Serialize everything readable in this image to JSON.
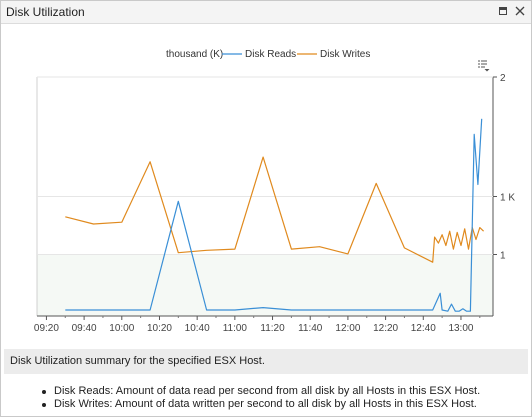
{
  "window": {
    "title": "Disk Utilization",
    "buttons": [
      "restore",
      "close"
    ]
  },
  "chart_data": {
    "type": "line",
    "unit_label": "thousand (K)",
    "legend_position": "top-center",
    "grid": true,
    "x_tick_labels": [
      "09:20",
      "09:40",
      "10:00",
      "10:20",
      "10:40",
      "11:00",
      "11:20",
      "11:40",
      "12:00",
      "12:20",
      "12:40",
      "13:00"
    ],
    "y_tick_labels": [
      "2",
      "1 K",
      "1"
    ],
    "y_range": [
      0,
      2000
    ],
    "series": [
      {
        "name": "Disk Reads",
        "color": "#3a8fd6",
        "points": [
          [
            "09:30",
            50
          ],
          [
            "09:40",
            50
          ],
          [
            "09:50",
            50
          ],
          [
            "10:00",
            50
          ],
          [
            "10:15",
            50
          ],
          [
            "10:30",
            960
          ],
          [
            "10:45",
            50
          ],
          [
            "11:00",
            50
          ],
          [
            "11:15",
            70
          ],
          [
            "11:30",
            50
          ],
          [
            "11:45",
            50
          ],
          [
            "12:00",
            50
          ],
          [
            "12:15",
            50
          ],
          [
            "12:30",
            50
          ],
          [
            "12:45",
            50
          ],
          [
            "12:49",
            190
          ],
          [
            "12:50",
            50
          ],
          [
            "12:53",
            40
          ],
          [
            "12:55",
            100
          ],
          [
            "12:57",
            40
          ],
          [
            "12:59",
            40
          ],
          [
            "13:01",
            60
          ],
          [
            "13:03",
            40
          ],
          [
            "13:05",
            40
          ],
          [
            "13:07",
            1520
          ],
          [
            "13:09",
            1100
          ],
          [
            "13:11",
            1650
          ]
        ]
      },
      {
        "name": "Disk Writes",
        "color": "#e08a1e",
        "points": [
          [
            "09:30",
            830
          ],
          [
            "09:45",
            770
          ],
          [
            "10:00",
            785
          ],
          [
            "10:15",
            1290
          ],
          [
            "10:30",
            530
          ],
          [
            "10:45",
            550
          ],
          [
            "11:00",
            560
          ],
          [
            "11:15",
            1330
          ],
          [
            "11:30",
            560
          ],
          [
            "11:45",
            580
          ],
          [
            "12:00",
            520
          ],
          [
            "12:15",
            1110
          ],
          [
            "12:30",
            570
          ],
          [
            "12:45",
            450
          ],
          [
            "12:46",
            660
          ],
          [
            "12:48",
            610
          ],
          [
            "12:50",
            680
          ],
          [
            "12:52",
            590
          ],
          [
            "12:54",
            710
          ],
          [
            "12:56",
            560
          ],
          [
            "12:58",
            700
          ],
          [
            "13:00",
            590
          ],
          [
            "13:02",
            730
          ],
          [
            "13:04",
            560
          ],
          [
            "13:06",
            740
          ],
          [
            "13:08",
            640
          ],
          [
            "13:10",
            740
          ],
          [
            "13:12",
            710
          ]
        ]
      }
    ]
  },
  "summary": {
    "text": "Disk Utilization summary for the specified ESX Host."
  },
  "descriptions": [
    "Disk Reads: Amount of data read per second from all disk by all Hosts in this ESX Host.",
    "Disk Writes: Amount of data written per second to all disk by all Hosts in this ESX Host."
  ]
}
